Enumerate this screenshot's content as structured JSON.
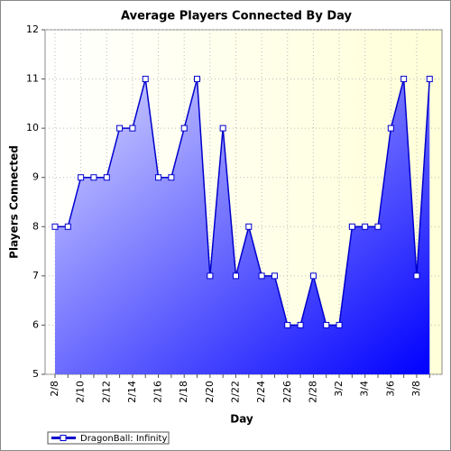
{
  "chart_data": {
    "type": "area",
    "title": "Average Players Connected By Day",
    "x_label": "Day",
    "y_label": "Players Connected",
    "categories": [
      "2/8",
      null,
      "2/10",
      null,
      "2/12",
      null,
      "2/14",
      null,
      "2/16",
      null,
      "2/18",
      null,
      "2/20",
      null,
      "2/22",
      null,
      "2/24",
      null,
      "2/26",
      null,
      "2/28",
      null,
      "3/2",
      null,
      "3/4",
      null,
      "3/6",
      null,
      "3/8",
      null
    ],
    "series": [
      {
        "name": "DragonBall: Infinity",
        "color": "#0000cc",
        "values": [
          8,
          8,
          9,
          9,
          9,
          10,
          10,
          11,
          9,
          9,
          10,
          11,
          7,
          10,
          7,
          8,
          7,
          7,
          6,
          6,
          7,
          6,
          6,
          8,
          8,
          8,
          10,
          11,
          7,
          11
        ]
      }
    ],
    "ylim": [
      5,
      12
    ],
    "yticks": [
      5,
      6,
      7,
      8,
      9,
      10,
      11,
      12
    ],
    "grid": true,
    "legend": "bottom-left"
  }
}
